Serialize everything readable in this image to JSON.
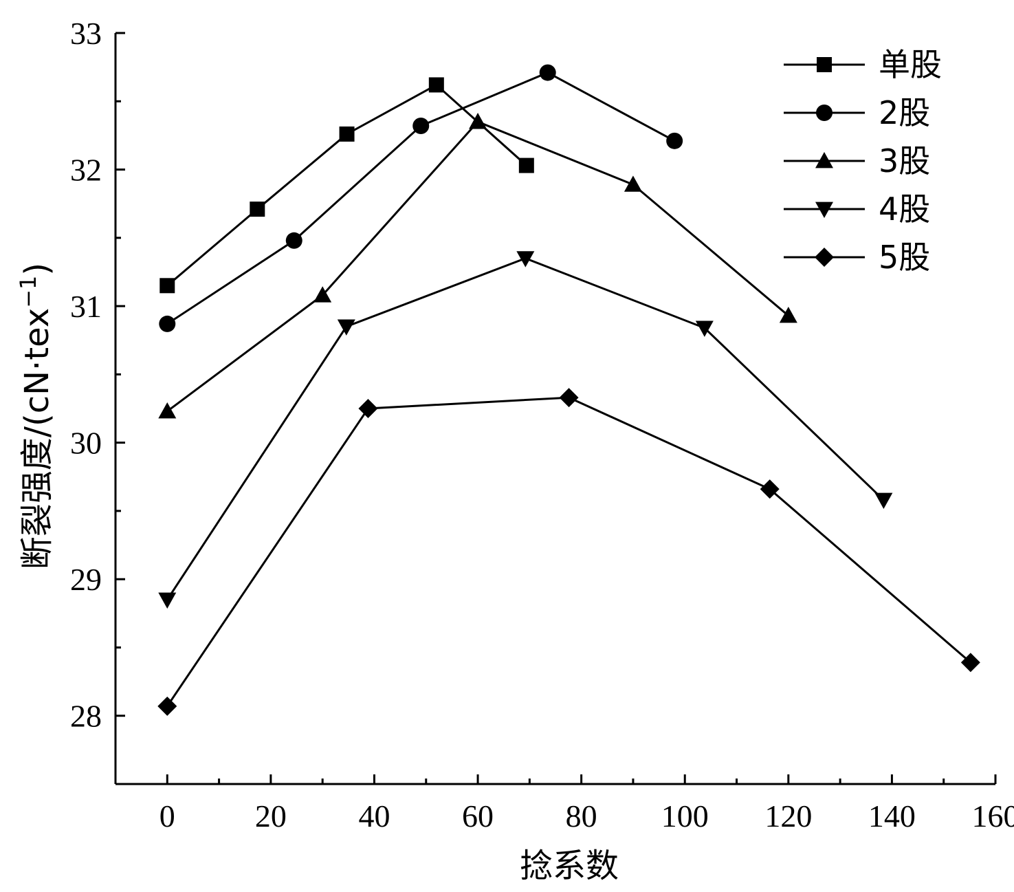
{
  "chart_data": {
    "type": "line",
    "xlabel": "捻系数",
    "ylabel_main": "断裂强度/(cN·tex",
    "ylabel_sup": "−1",
    "ylabel_close": ")",
    "xlim": [
      -10,
      160
    ],
    "ylim": [
      27.5,
      33
    ],
    "xticks": [
      0,
      20,
      40,
      60,
      80,
      100,
      120,
      140,
      160
    ],
    "xtick_labels": [
      "0",
      "20",
      "40",
      "60",
      "80",
      "100",
      "120",
      "140",
      "160"
    ],
    "yticks": [
      28,
      29,
      30,
      31,
      32,
      33
    ],
    "ytick_labels": [
      "28",
      "29",
      "30",
      "31",
      "32",
      "33"
    ],
    "legend_position": "top-right",
    "grid": false,
    "series": [
      {
        "name": "单股",
        "marker": "square",
        "points": [
          [
            0,
            31.15
          ],
          [
            17.4,
            31.71
          ],
          [
            34.7,
            32.26
          ],
          [
            52.0,
            32.62
          ],
          [
            69.4,
            32.03
          ]
        ]
      },
      {
        "name": "2股",
        "marker": "circle",
        "points": [
          [
            0,
            30.87
          ],
          [
            24.5,
            31.48
          ],
          [
            49.0,
            32.32
          ],
          [
            73.5,
            32.71
          ],
          [
            98.0,
            32.21
          ]
        ]
      },
      {
        "name": "3股",
        "marker": "triangle-up",
        "points": [
          [
            0,
            30.23
          ],
          [
            30.0,
            31.08
          ],
          [
            60.0,
            32.35
          ],
          [
            90.0,
            31.89
          ],
          [
            120.0,
            30.93
          ]
        ]
      },
      {
        "name": "4股",
        "marker": "triangle-down",
        "points": [
          [
            0,
            28.85
          ],
          [
            34.6,
            30.85
          ],
          [
            69.2,
            31.35
          ],
          [
            103.8,
            30.84
          ],
          [
            138.4,
            29.58
          ]
        ]
      },
      {
        "name": "5股",
        "marker": "diamond",
        "points": [
          [
            0,
            28.07
          ],
          [
            38.8,
            30.25
          ],
          [
            77.6,
            30.33
          ],
          [
            116.4,
            29.66
          ],
          [
            155.2,
            28.39
          ]
        ]
      }
    ]
  }
}
